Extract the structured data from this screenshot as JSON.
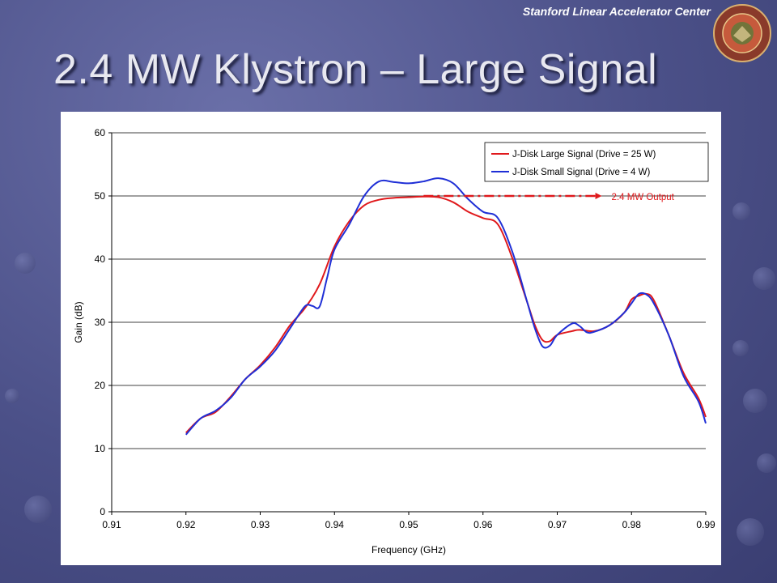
{
  "header": {
    "organization": "Stanford Linear Accelerator Center",
    "title": "2.4 MW Klystron – Large Signal",
    "seal_text": "STANFORD LINEAR ACCELERATOR CENTER"
  },
  "colors": {
    "large_signal": "#e0191c",
    "small_signal": "#1f2fd6",
    "accent": "#e0191c"
  },
  "chart_data": {
    "type": "line",
    "title": "",
    "xlabel": "Frequency (GHz)",
    "ylabel": "Gain (dB)",
    "xlim": [
      0.91,
      0.99
    ],
    "ylim": [
      0,
      60
    ],
    "x_ticks": [
      "0.91",
      "0.92",
      "0.93",
      "0.94",
      "0.95",
      "0.96",
      "0.97",
      "0.98",
      "0.99"
    ],
    "y_ticks": [
      "0",
      "10",
      "20",
      "30",
      "40",
      "50",
      "60"
    ],
    "grid": "horizontal",
    "legend_position": "top-right",
    "series": [
      {
        "name": "J-Disk Large Signal (Drive = 25 W)",
        "color": "#e0191c",
        "points": [
          [
            0.92,
            12.5
          ],
          [
            0.922,
            14.8
          ],
          [
            0.924,
            15.8
          ],
          [
            0.926,
            18.2
          ],
          [
            0.928,
            21.0
          ],
          [
            0.93,
            23.2
          ],
          [
            0.932,
            26.0
          ],
          [
            0.934,
            29.5
          ],
          [
            0.936,
            32.2
          ],
          [
            0.938,
            36.0
          ],
          [
            0.94,
            42.0
          ],
          [
            0.942,
            46.0
          ],
          [
            0.944,
            48.5
          ],
          [
            0.946,
            49.4
          ],
          [
            0.948,
            49.7
          ],
          [
            0.95,
            49.8
          ],
          [
            0.952,
            49.9
          ],
          [
            0.954,
            49.8
          ],
          [
            0.956,
            49.0
          ],
          [
            0.958,
            47.5
          ],
          [
            0.96,
            46.5
          ],
          [
            0.962,
            45.5
          ],
          [
            0.964,
            40.0
          ],
          [
            0.966,
            33.0
          ],
          [
            0.967,
            29.5
          ],
          [
            0.968,
            27.2
          ],
          [
            0.969,
            27.0
          ],
          [
            0.97,
            28.0
          ],
          [
            0.972,
            28.6
          ],
          [
            0.973,
            28.8
          ],
          [
            0.975,
            28.6
          ],
          [
            0.977,
            29.5
          ],
          [
            0.979,
            31.5
          ],
          [
            0.98,
            33.6
          ],
          [
            0.981,
            34.2
          ],
          [
            0.982,
            34.5
          ],
          [
            0.983,
            33.5
          ],
          [
            0.985,
            28.0
          ],
          [
            0.987,
            22.0
          ],
          [
            0.989,
            18.0
          ],
          [
            0.99,
            15.0
          ]
        ]
      },
      {
        "name": "J-Disk Small Signal (Drive = 4 W)",
        "color": "#1f2fd6",
        "points": [
          [
            0.92,
            12.2
          ],
          [
            0.922,
            14.8
          ],
          [
            0.924,
            16.0
          ],
          [
            0.926,
            18.0
          ],
          [
            0.928,
            21.0
          ],
          [
            0.93,
            23.0
          ],
          [
            0.932,
            25.5
          ],
          [
            0.934,
            29.0
          ],
          [
            0.936,
            32.5
          ],
          [
            0.937,
            32.6
          ],
          [
            0.938,
            32.5
          ],
          [
            0.939,
            37.0
          ],
          [
            0.94,
            41.5
          ],
          [
            0.942,
            45.5
          ],
          [
            0.944,
            50.0
          ],
          [
            0.946,
            52.3
          ],
          [
            0.948,
            52.2
          ],
          [
            0.95,
            52.0
          ],
          [
            0.952,
            52.3
          ],
          [
            0.954,
            52.8
          ],
          [
            0.956,
            52.0
          ],
          [
            0.958,
            49.5
          ],
          [
            0.96,
            47.5
          ],
          [
            0.962,
            46.5
          ],
          [
            0.964,
            41.0
          ],
          [
            0.966,
            33.0
          ],
          [
            0.967,
            29.0
          ],
          [
            0.968,
            26.2
          ],
          [
            0.969,
            26.3
          ],
          [
            0.97,
            28.0
          ],
          [
            0.972,
            29.8
          ],
          [
            0.973,
            29.4
          ],
          [
            0.974,
            28.4
          ],
          [
            0.975,
            28.5
          ],
          [
            0.977,
            29.5
          ],
          [
            0.979,
            31.5
          ],
          [
            0.98,
            33.0
          ],
          [
            0.981,
            34.5
          ],
          [
            0.982,
            34.4
          ],
          [
            0.983,
            33.0
          ],
          [
            0.985,
            28.0
          ],
          [
            0.987,
            21.5
          ],
          [
            0.989,
            17.5
          ],
          [
            0.99,
            14.0
          ]
        ]
      }
    ],
    "annotation": {
      "label": "2.4 MW Output",
      "x_start": 0.952,
      "x_end": 0.976,
      "y": 50
    }
  }
}
